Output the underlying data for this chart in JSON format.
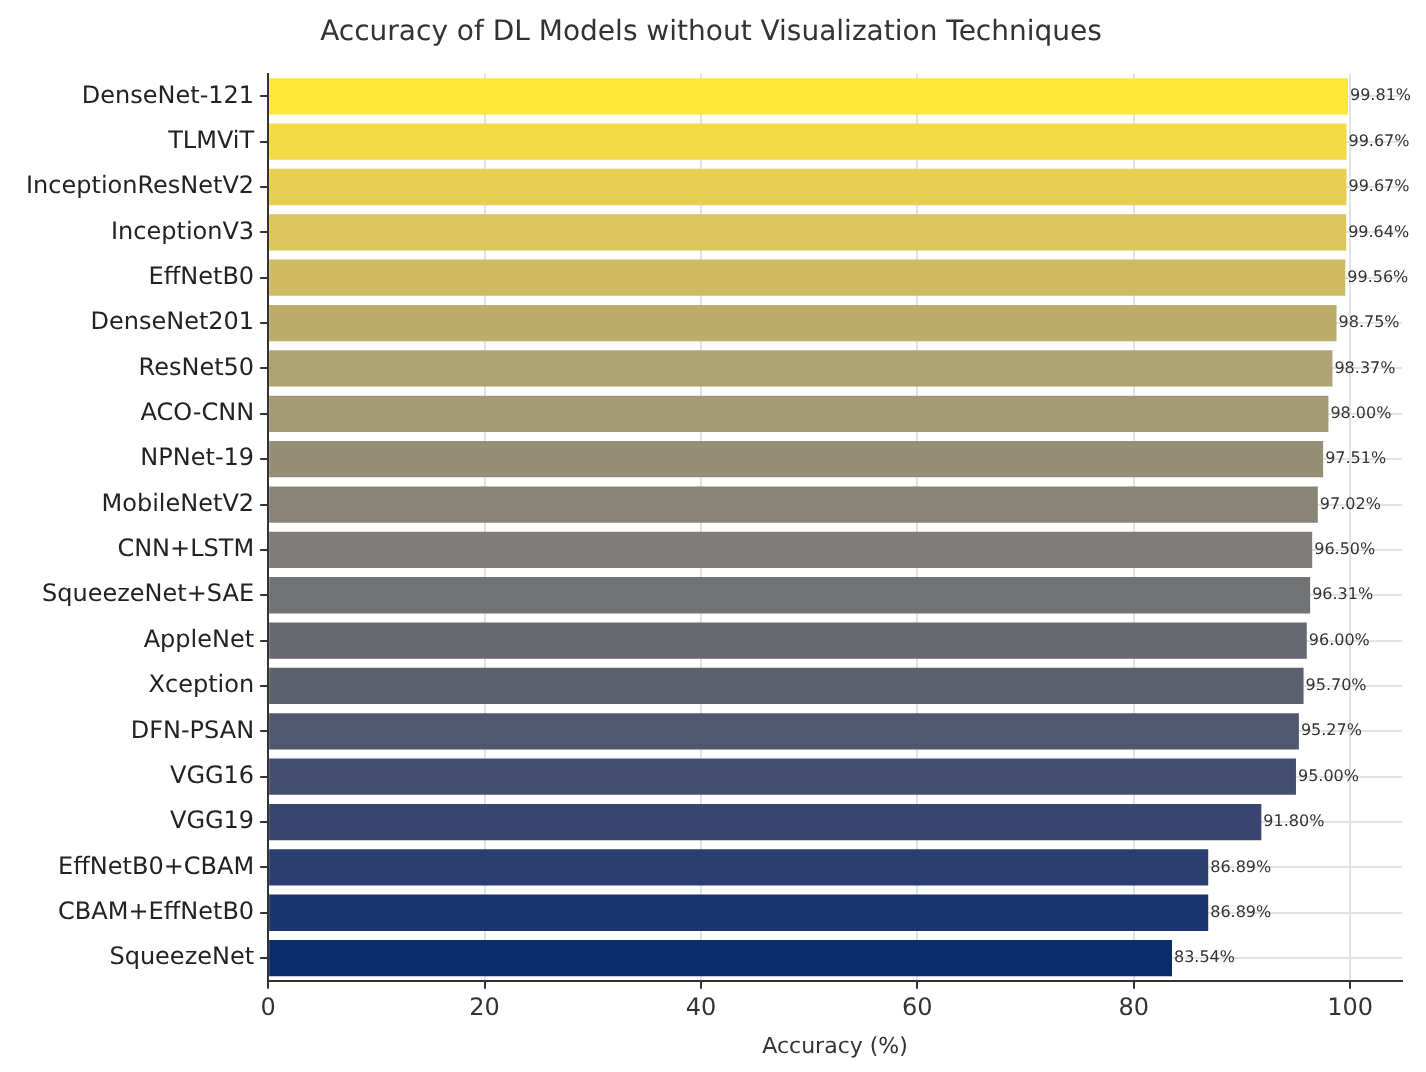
{
  "chart_data": {
    "type": "bar",
    "orientation": "horizontal",
    "title": "Accuracy of DL Models without Visualization Techniques",
    "xlabel": "Accuracy (%)",
    "categories": [
      "DenseNet-121",
      "TLMViT",
      "InceptionResNetV2",
      "InceptionV3",
      "EffNetB0",
      "DenseNet201",
      "ResNet50",
      "ACO-CNN",
      "NPNet-19",
      "MobileNetV2",
      "CNN+LSTM",
      "SqueezeNet+SAE",
      "AppleNet",
      "Xception",
      "DFN-PSAN",
      "VGG16",
      "VGG19",
      "EffNetB0+CBAM",
      "CBAM+EffNetB0",
      "SqueezeNet"
    ],
    "values": [
      99.81,
      99.67,
      99.67,
      99.64,
      99.56,
      98.75,
      98.37,
      98.0,
      97.51,
      97.02,
      96.5,
      96.31,
      96.0,
      95.7,
      95.27,
      95.0,
      91.8,
      86.89,
      86.89,
      83.54
    ],
    "value_labels": [
      "99.81%",
      "99.67%",
      "99.67%",
      "99.64%",
      "99.56%",
      "98.75%",
      "98.37%",
      "98.00%",
      "97.51%",
      "97.02%",
      "96.50%",
      "96.31%",
      "96.00%",
      "95.70%",
      "95.27%",
      "95.00%",
      "91.80%",
      "86.89%",
      "86.89%",
      "83.54%"
    ],
    "colors": [
      "#fde737",
      "#f2da48",
      "#e6cf54",
      "#dbc55c",
      "#cfbb63",
      "#bcad6b",
      "#afa374",
      "#a39977",
      "#958f77",
      "#898679",
      "#7d7c78",
      "#717274",
      "#666970",
      "#5b616e",
      "#4f586f",
      "#444f6f",
      "#38466f",
      "#2b3e70",
      "#1c3571",
      "#0b2c6b"
    ],
    "xlim": [
      0,
      104.8
    ],
    "xticks": [
      0,
      20,
      40,
      60,
      80,
      100
    ],
    "grid": true,
    "legend": false
  }
}
